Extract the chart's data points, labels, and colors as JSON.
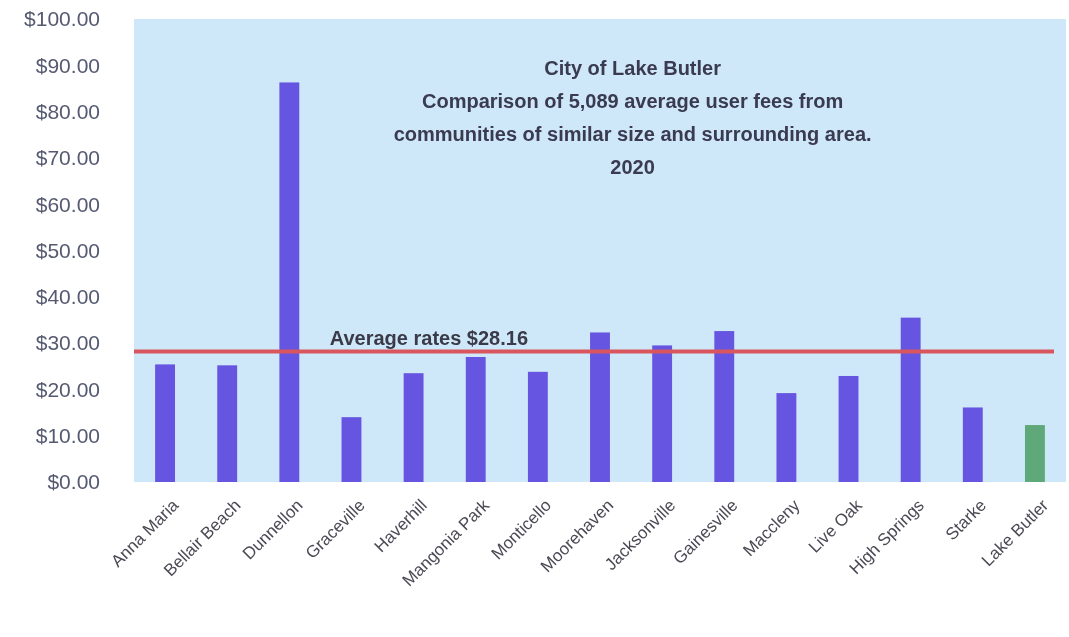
{
  "chart_data": {
    "type": "bar",
    "title": "City of Lake Butler",
    "subtitle": "Comparison of 5,089 average user fees from\ncommunities of similar size and surrounding area.\n2020",
    "categories": [
      "Anna Maria",
      "Bellair Beach",
      "Dunnellon",
      "Graceville",
      "Haverhill",
      "Mangonia Park",
      "Monticello",
      "Moorehaven",
      "Jacksonville",
      "Gainesville",
      "Maccleny",
      "Live Oak",
      "High Springs",
      "Starke",
      "Lake Butler"
    ],
    "values": [
      25.4,
      25.2,
      86.3,
      14.0,
      23.5,
      27.0,
      23.8,
      32.3,
      29.5,
      32.6,
      19.2,
      22.9,
      35.5,
      16.1,
      12.3
    ],
    "colors": [
      "#6655e0",
      "#6655e0",
      "#6655e0",
      "#6655e0",
      "#6655e0",
      "#6655e0",
      "#6655e0",
      "#6655e0",
      "#6655e0",
      "#6655e0",
      "#6655e0",
      "#6655e0",
      "#6655e0",
      "#6655e0",
      "#5fa87a"
    ],
    "ylim": [
      0,
      100
    ],
    "yticks": [
      {
        "value": 0,
        "label": "$0.00"
      },
      {
        "value": 10,
        "label": "$10.00"
      },
      {
        "value": 20,
        "label": "$20.00"
      },
      {
        "value": 30,
        "label": "$30.00"
      },
      {
        "value": 40,
        "label": "$40.00"
      },
      {
        "value": 50,
        "label": "$50.00"
      },
      {
        "value": 60,
        "label": "$60.00"
      },
      {
        "value": 70,
        "label": "$70.00"
      },
      {
        "value": 80,
        "label": "$80.00"
      },
      {
        "value": 90,
        "label": "$90.00"
      },
      {
        "value": 100,
        "label": "$100.00"
      }
    ],
    "ref_lines": [
      {
        "axis": "y",
        "value": 28.16,
        "label": "Average rates $28.16",
        "color": "#d9565f"
      }
    ]
  }
}
